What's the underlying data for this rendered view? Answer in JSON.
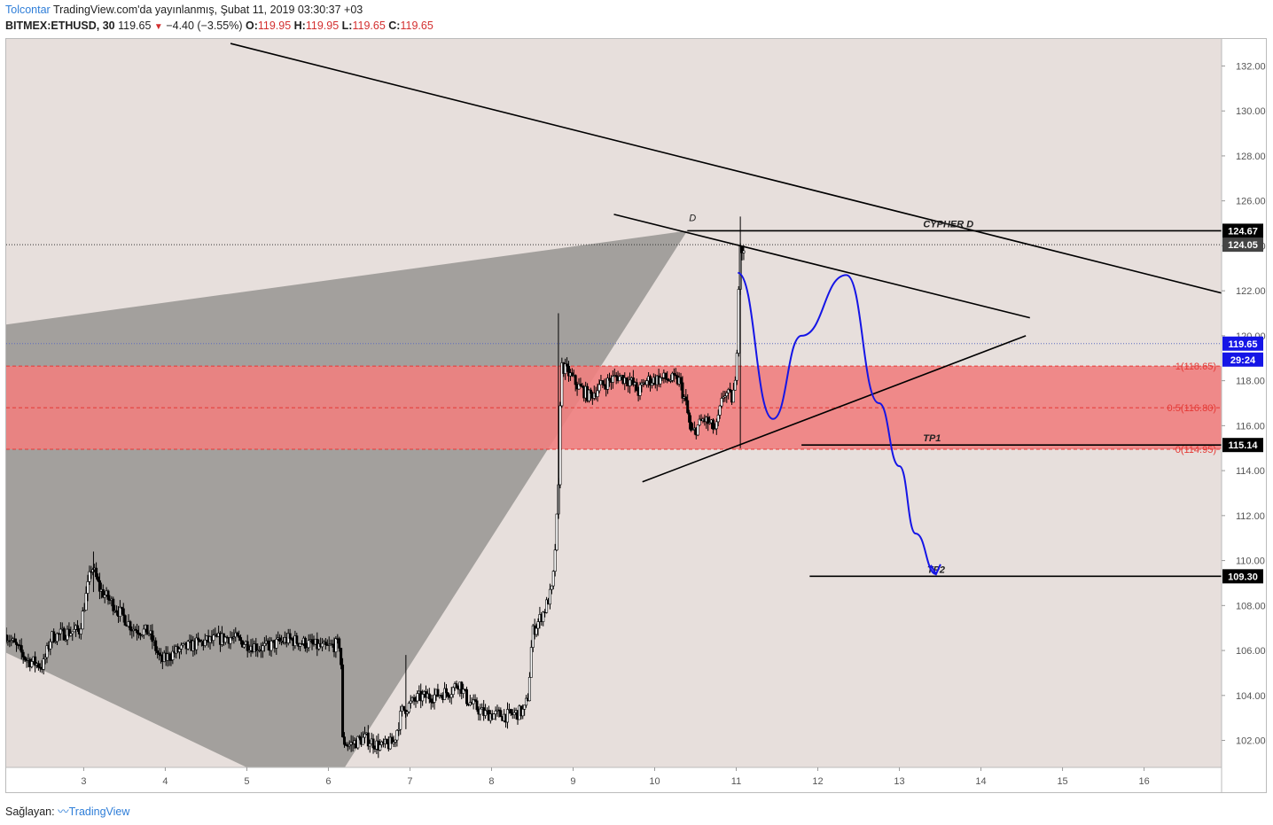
{
  "header": {
    "author": "Tolcontar",
    "published": "TradingView.com'da yayınlanmış, Şubat 11, 2019 03:30:37 +03",
    "symbol": "BITMEX:ETHUSD, 30",
    "last": "119.65",
    "change": "−4.40 (−3.55%)",
    "o_label": "O:",
    "o_value": "119.95",
    "h_label": "H:",
    "h_value": "119.95",
    "l_label": "L:",
    "l_value": "119.65",
    "c_label": "C:",
    "c_value": "119.65"
  },
  "footer": {
    "prefix": "Sağlayan:",
    "brand": "TradingView"
  },
  "colors": {
    "background": "#e7dfdc",
    "triangle": "#a3a09d",
    "zone": "#f08080",
    "zone_line": "#e53935",
    "candles": "#000000",
    "path": "#1515e6",
    "price_tag": "#1515e6"
  },
  "chart_data": {
    "type": "candlestick",
    "ylim": [
      100.8,
      133.2
    ],
    "xlim": [
      2.05,
      16.95
    ],
    "x_ticks": [
      3,
      4,
      5,
      6,
      7,
      8,
      9,
      10,
      11,
      12,
      13,
      14,
      15,
      16
    ],
    "x_tick_labels": [
      "3",
      "4",
      "5",
      "6",
      "7",
      "8",
      "9",
      "10",
      "11",
      "12",
      "13",
      "14",
      "15",
      "16"
    ],
    "y_ticks": [
      102,
      104,
      106,
      108,
      110,
      112,
      114,
      116,
      118,
      120,
      122,
      124,
      126,
      128,
      130,
      132
    ],
    "y_tick_labels": [
      "102.00",
      "104.00",
      "106.00",
      "108.00",
      "110.00",
      "112.00",
      "114.00",
      "116.00",
      "118.00",
      "120.00",
      "122.00",
      "124.00",
      "126.00",
      "128.00",
      "130.00",
      "132.00"
    ],
    "price_path": [
      [
        2.05,
        106.7
      ],
      [
        2.3,
        105.6
      ],
      [
        2.5,
        105.3
      ],
      [
        2.6,
        106.6
      ],
      [
        2.8,
        106.8
      ],
      [
        2.95,
        106.9
      ],
      [
        3.1,
        109.8
      ],
      [
        3.2,
        108.7
      ],
      [
        3.35,
        108.1
      ],
      [
        3.6,
        107.0
      ],
      [
        3.8,
        106.8
      ],
      [
        3.95,
        105.5
      ],
      [
        4.1,
        105.9
      ],
      [
        4.3,
        106.2
      ],
      [
        4.5,
        106.4
      ],
      [
        4.8,
        106.6
      ],
      [
        5.0,
        106.3
      ],
      [
        5.2,
        106.1
      ],
      [
        5.5,
        106.5
      ],
      [
        5.75,
        106.3
      ],
      [
        5.95,
        106.1
      ],
      [
        6.15,
        106.3
      ],
      [
        6.17,
        102.0
      ],
      [
        6.25,
        101.8
      ],
      [
        6.45,
        102.1
      ],
      [
        6.65,
        101.7
      ],
      [
        6.8,
        101.9
      ],
      [
        6.9,
        103.3
      ],
      [
        7.1,
        103.9
      ],
      [
        7.3,
        104.0
      ],
      [
        7.5,
        104.2
      ],
      [
        7.6,
        104.6
      ],
      [
        7.7,
        103.8
      ],
      [
        7.9,
        103.2
      ],
      [
        8.2,
        103.1
      ],
      [
        8.4,
        103.3
      ],
      [
        8.45,
        104.0
      ],
      [
        8.5,
        106.8
      ],
      [
        8.65,
        107.8
      ],
      [
        8.75,
        108.8
      ],
      [
        8.82,
        113.0
      ],
      [
        8.85,
        118.7
      ],
      [
        8.95,
        118.3
      ],
      [
        9.05,
        117.8
      ],
      [
        9.2,
        117.3
      ],
      [
        9.35,
        117.8
      ],
      [
        9.55,
        118.2
      ],
      [
        9.7,
        118.0
      ],
      [
        9.8,
        117.5
      ],
      [
        9.9,
        118.0
      ],
      [
        10.1,
        118.1
      ],
      [
        10.3,
        118.0
      ],
      [
        10.38,
        117.0
      ],
      [
        10.45,
        115.6
      ],
      [
        10.6,
        116.3
      ],
      [
        10.75,
        115.8
      ],
      [
        10.85,
        117.5
      ],
      [
        10.95,
        117.2
      ],
      [
        11.0,
        118.0
      ],
      [
        11.02,
        121.6
      ],
      [
        11.05,
        124.1
      ],
      [
        11.1,
        123.5
      ],
      [
        11.1,
        119.65
      ]
    ],
    "projection_path": [
      [
        11.02,
        122.8
      ],
      [
        11.45,
        116.3
      ],
      [
        11.8,
        120.0
      ],
      [
        12.35,
        122.7
      ],
      [
        12.75,
        117.0
      ],
      [
        13.0,
        114.2
      ],
      [
        13.2,
        111.2
      ],
      [
        13.45,
        109.4
      ]
    ],
    "ranges": [
      {
        "low": 114.95,
        "high": 118.65
      }
    ],
    "fib_levels": [
      {
        "label": "1(118.65)",
        "value": 118.65
      },
      {
        "label": "0.5(116.80)",
        "value": 116.8
      },
      {
        "label": "0(114.95)",
        "value": 114.95
      }
    ],
    "levels": [
      {
        "label": "CYPHER D",
        "value": 124.67
      },
      {
        "label": "TP1",
        "value": 115.14
      },
      {
        "label": "TP2",
        "value": 109.3
      }
    ],
    "point_labels": [
      {
        "label": "D",
        "x": 10.4,
        "y": 124.67
      }
    ],
    "trend_lines": [
      {
        "x1": 4.8,
        "y1": 133.0,
        "x2": 16.95,
        "y2": 121.9
      },
      {
        "x1": 9.5,
        "y1": 125.4,
        "x2": 14.6,
        "y2": 120.8
      },
      {
        "x1": 9.85,
        "y1": 113.5,
        "x2": 14.55,
        "y2": 120.0
      }
    ],
    "harmonic_triangle": [
      [
        2.05,
        120.5
      ],
      [
        10.4,
        124.67
      ],
      [
        6.2,
        100.8
      ],
      [
        5.0,
        100.8
      ],
      [
        2.05,
        105.9
      ]
    ],
    "price_tags": [
      {
        "value": 124.67,
        "label": "124.67"
      },
      {
        "value": 124.05,
        "label": "124.05"
      },
      {
        "value": 119.65,
        "label": "119.65"
      },
      {
        "label": "29:24"
      },
      {
        "value": 115.14,
        "label": "115.14"
      },
      {
        "value": 109.3,
        "label": "109.30"
      }
    ]
  }
}
